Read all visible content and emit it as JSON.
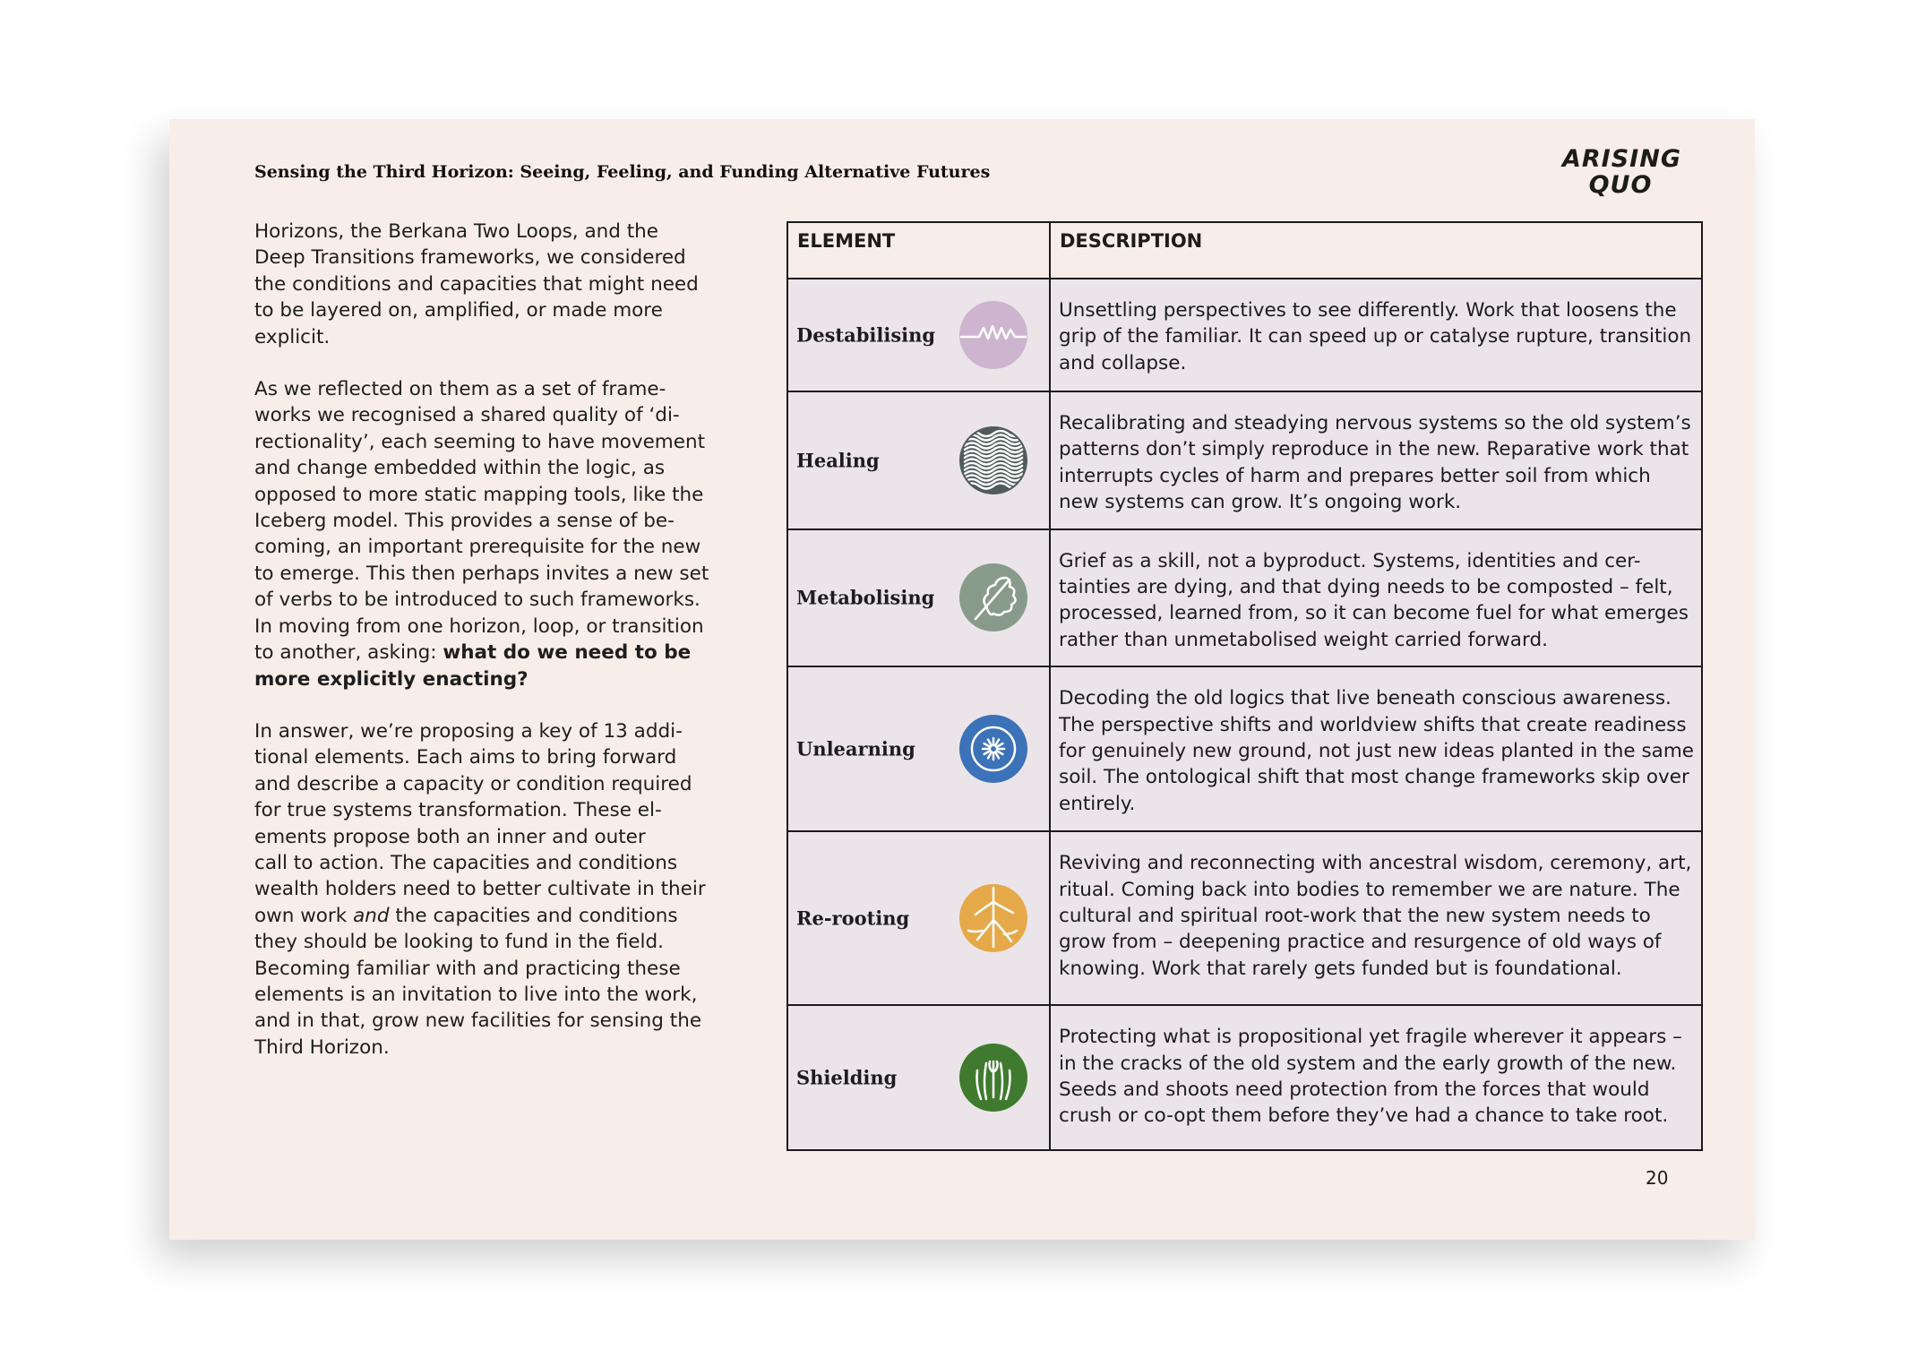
{
  "header": {
    "title": "Sensing the Third Horizon: Seeing, Feeling, and Funding Alternative Futures",
    "logo_text": [
      "ARISING",
      "QUO"
    ]
  },
  "body_text": [
    [
      "Horizons, the Berkana Two Loops, and the",
      "Deep Transitions frameworks, we considered",
      "the conditions and capacities that might need",
      "to be layered on, amplified, or made more",
      "explicit."
    ],
    [
      "As we reflected on them as a set of frame-",
      "works we recognised a shared quality of ‘di-",
      "rectionality’, each seeming to have movement",
      "and change embedded within the logic, as",
      "opposed to more static mapping tools, like the",
      "Iceberg model. This provides a sense of be-",
      "coming, an important prerequisite for the new",
      "to emerge. This then perhaps invites a new set",
      "of verbs to be introduced to such frameworks.",
      "In moving from one horizon, loop, or transition",
      [
        [
          "to another, asking: ",
          ""
        ],
        [
          "what do we need to be",
          "b"
        ]
      ],
      [
        [
          "more explicitly enacting?",
          "b"
        ]
      ]
    ],
    [
      "In answer, we’re proposing a key of 13 addi-",
      "tional elements. Each aims to bring forward",
      "and describe a capacity or condition required",
      "for true systems transformation. These el-",
      "ements propose both an inner and outer",
      "call to action. The capacities and conditions",
      "wealth holders need to better cultivate in their",
      [
        [
          "own work ",
          ""
        ],
        [
          "and",
          "i"
        ],
        [
          " the capacities and conditions",
          ""
        ]
      ],
      "they should be looking to fund in the field.",
      "Becoming familiar with and practicing these",
      "elements is an invitation to live into the work,",
      "and in that, grow new facilities for sensing the",
      "Third Horizon."
    ]
  ],
  "table": {
    "headers": [
      "ELEMENT",
      "DESCRIPTION"
    ],
    "rows": [
      {
        "element": "Destabilising",
        "icon": "heartbeat-line-icon",
        "color": "#cdb4cf",
        "description": [
          "Unsettling perspectives to see differently. Work that loosens the",
          "grip of the familiar. It can speed up or catalyse rupture, transition",
          "and collapse."
        ]
      },
      {
        "element": "Healing",
        "icon": "neural-pattern-icon",
        "color": "#4f5c59",
        "description": [
          "Recalibrating and steadying nervous systems so the old system’s",
          "patterns don’t simply reproduce in the new. Reparative work that",
          "interrupts cycles of harm and prepares better soil from which",
          "new systems can grow. It’s ongoing work."
        ]
      },
      {
        "element": "Metabolising",
        "icon": "oak-leaf-icon",
        "color": "#889b8a",
        "description": [
          "Grief as a skill, not a byproduct. Systems, identities and cer-",
          "tainties are dying, and that dying needs to be composted – felt,",
          "processed, learned from, so it can become fuel for what emerges",
          "rather than unmetabolised weight carried forward."
        ]
      },
      {
        "element": "Unlearning",
        "icon": "radiating-circle-icon",
        "color": "#3c72b8",
        "description": [
          "Decoding the old logics that live beneath conscious awareness.",
          "The perspective shifts and worldview shifts that create readiness",
          "for genuinely new ground, not just new ideas planted in the same",
          "soil. The ontological shift that most change frameworks skip over",
          "entirely."
        ]
      },
      {
        "element": "Re-rooting",
        "icon": "roots-icon",
        "color": "#e6a94a",
        "description": [
          "Reviving and reconnecting with ancestral wisdom, ceremony, art,",
          "ritual. Coming back into bodies to remember we are nature. The",
          "cultural and spiritual root-work that the new system needs to",
          "grow from – deepening practice and resurgence of old ways of",
          "knowing. Work that rarely gets funded but is foundational."
        ]
      },
      {
        "element": "Shielding",
        "icon": "protecting-hands-icon",
        "color": "#3f7a2e",
        "description": [
          "Protecting what is propositional yet fragile wherever it appears –",
          "in the cracks of the old system and the early growth of the new.",
          "Seeds and shoots need protection from the forces that would",
          "crush or co-opt them before they’ve had a chance to take root."
        ]
      }
    ]
  },
  "page_number": "20"
}
